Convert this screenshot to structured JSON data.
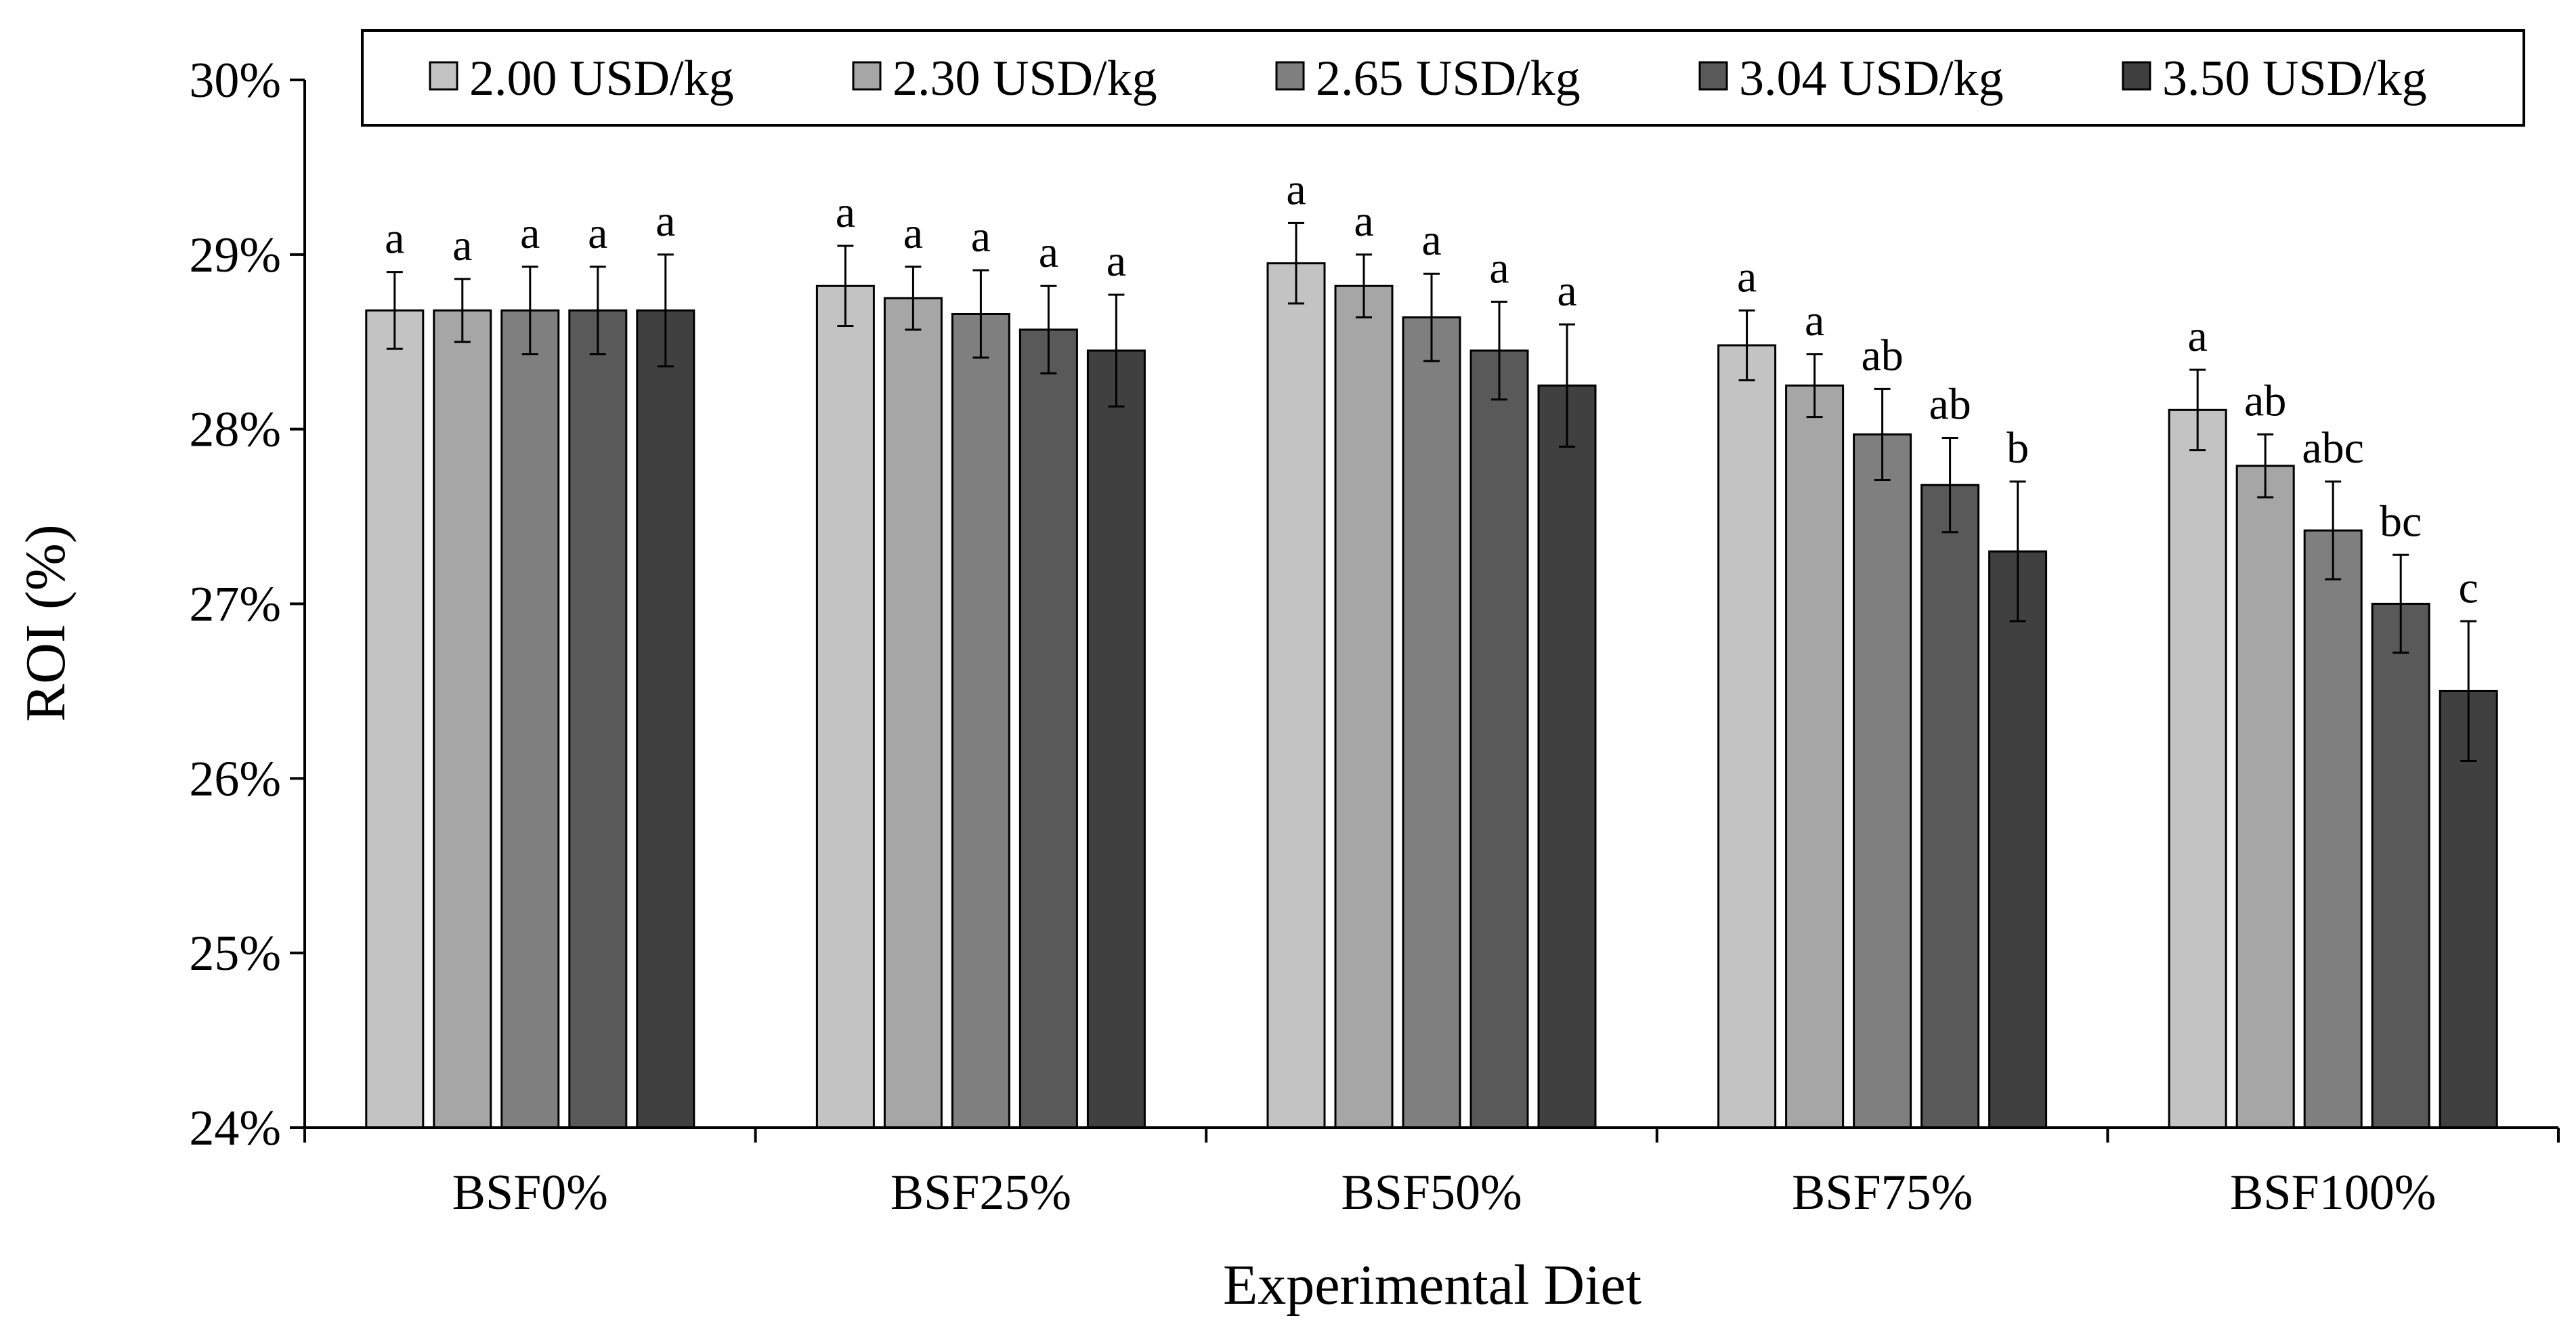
{
  "chart_data": {
    "type": "bar",
    "title": "",
    "xlabel": "Experimental Diet",
    "ylabel": "ROI (%)",
    "ylim": [
      24,
      30
    ],
    "yticks": [
      "24%",
      "25%",
      "26%",
      "27%",
      "28%",
      "29%",
      "30%"
    ],
    "grid": false,
    "legend_position": "top",
    "categories": [
      "BSF0%",
      "BSF25%",
      "BSF50%",
      "BSF75%",
      "BSF100%"
    ],
    "colors": [
      "#c3c3c3",
      "#a6a6a6",
      "#7f7f7f",
      "#595959",
      "#404040"
    ],
    "series": [
      {
        "name": "2.00 USD/kg",
        "values": [
          28.68,
          28.82,
          28.95,
          28.48,
          28.11
        ],
        "errors": [
          0.22,
          0.23,
          0.23,
          0.2,
          0.23
        ],
        "labels": [
          "a",
          "a",
          "a",
          "a",
          "a"
        ]
      },
      {
        "name": "2.30 USD/kg",
        "values": [
          28.68,
          28.75,
          28.82,
          28.25,
          27.79
        ],
        "errors": [
          0.18,
          0.18,
          0.18,
          0.18,
          0.18
        ],
        "labels": [
          "a",
          "a",
          "a",
          "a",
          "ab"
        ]
      },
      {
        "name": "2.65 USD/kg",
        "values": [
          28.68,
          28.66,
          28.64,
          27.97,
          27.42
        ],
        "errors": [
          0.25,
          0.25,
          0.25,
          0.26,
          0.28
        ],
        "labels": [
          "a",
          "a",
          "a",
          "ab",
          "abc"
        ]
      },
      {
        "name": "3.04 USD/kg",
        "values": [
          28.68,
          28.57,
          28.45,
          27.68,
          27.0
        ],
        "errors": [
          0.25,
          0.25,
          0.28,
          0.27,
          0.28
        ],
        "labels": [
          "a",
          "a",
          "a",
          "ab",
          "bc"
        ]
      },
      {
        "name": "3.50 USD/kg",
        "values": [
          28.68,
          28.45,
          28.25,
          27.3,
          26.5
        ],
        "errors": [
          0.32,
          0.32,
          0.35,
          0.4,
          0.4
        ],
        "labels": [
          "a",
          "a",
          "a",
          "b",
          "c"
        ]
      }
    ]
  }
}
